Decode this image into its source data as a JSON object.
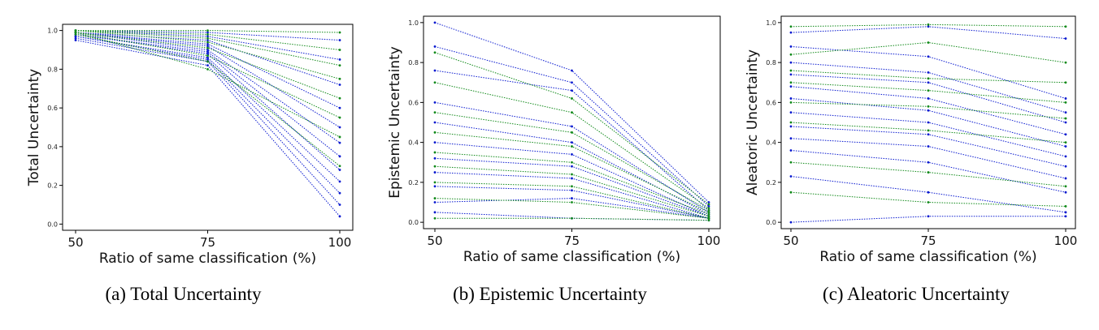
{
  "colors": {
    "series_a": "#0a1ad0",
    "series_b": "#118a1a"
  },
  "chart_data": [
    {
      "type": "line",
      "caption": "(a) Total Uncertainty",
      "xlabel": "Ratio  of same classification (%)",
      "ylabel": "Total Uncertainty",
      "x": [
        50,
        75,
        100
      ],
      "xticks": [
        "50",
        "75",
        "100"
      ],
      "yticks": [
        "0.0",
        "0.2",
        "0.4",
        "0.6",
        "0.8",
        "1.0"
      ],
      "ylim": [
        0,
        1
      ],
      "line_style": "dotted",
      "series": [
        {
          "color": "series_a",
          "values": [
            0.95,
            0.82,
            0.04
          ]
        },
        {
          "color": "series_a",
          "values": [
            0.96,
            0.84,
            0.1
          ]
        },
        {
          "color": "series_a",
          "values": [
            0.97,
            0.85,
            0.16
          ]
        },
        {
          "color": "series_a",
          "values": [
            0.97,
            0.86,
            0.22
          ]
        },
        {
          "color": "series_a",
          "values": [
            0.98,
            0.88,
            0.28
          ]
        },
        {
          "color": "series_a",
          "values": [
            0.98,
            0.89,
            0.35
          ]
        },
        {
          "color": "series_a",
          "values": [
            0.99,
            0.9,
            0.42
          ]
        },
        {
          "color": "series_a",
          "values": [
            0.99,
            0.92,
            0.5
          ]
        },
        {
          "color": "series_a",
          "values": [
            0.99,
            0.93,
            0.6
          ]
        },
        {
          "color": "series_a",
          "values": [
            0.99,
            0.95,
            0.72
          ]
        },
        {
          "color": "series_a",
          "values": [
            1.0,
            0.97,
            0.85
          ]
        },
        {
          "color": "series_a",
          "values": [
            1.0,
            0.99,
            0.95
          ]
        },
        {
          "color": "series_b",
          "values": [
            0.99,
            0.8,
            0.45
          ]
        },
        {
          "color": "series_b",
          "values": [
            0.99,
            0.87,
            0.55
          ]
        },
        {
          "color": "series_b",
          "values": [
            0.99,
            0.91,
            0.65
          ]
        },
        {
          "color": "series_b",
          "values": [
            1.0,
            0.94,
            0.75
          ]
        },
        {
          "color": "series_b",
          "values": [
            1.0,
            0.96,
            0.82
          ]
        },
        {
          "color": "series_b",
          "values": [
            1.0,
            0.98,
            0.9
          ]
        },
        {
          "color": "series_b",
          "values": [
            1.0,
            1.0,
            0.99
          ]
        },
        {
          "color": "series_b",
          "values": [
            0.98,
            0.84,
            0.3
          ]
        }
      ]
    },
    {
      "type": "line",
      "caption": "(b) Epistemic Uncertainty",
      "xlabel": "Ratio  of same classification (%)",
      "ylabel": "Epistemic Uncertainty",
      "x": [
        50,
        75,
        100
      ],
      "xticks": [
        "50",
        "75",
        "100"
      ],
      "yticks": [
        "0.0",
        "0.2",
        "0.4",
        "0.6",
        "0.8",
        "1.0"
      ],
      "ylim": [
        0,
        1
      ],
      "line_style": "dotted",
      "series": [
        {
          "color": "series_a",
          "values": [
            1.0,
            0.76,
            0.1
          ]
        },
        {
          "color": "series_a",
          "values": [
            0.88,
            0.7,
            0.08
          ]
        },
        {
          "color": "series_a",
          "values": [
            0.76,
            0.66,
            0.06
          ]
        },
        {
          "color": "series_a",
          "values": [
            0.6,
            0.48,
            0.05
          ]
        },
        {
          "color": "series_a",
          "values": [
            0.5,
            0.4,
            0.04
          ]
        },
        {
          "color": "series_a",
          "values": [
            0.4,
            0.34,
            0.03
          ]
        },
        {
          "color": "series_a",
          "values": [
            0.32,
            0.28,
            0.03
          ]
        },
        {
          "color": "series_a",
          "values": [
            0.25,
            0.22,
            0.02
          ]
        },
        {
          "color": "series_a",
          "values": [
            0.18,
            0.16,
            0.02
          ]
        },
        {
          "color": "series_a",
          "values": [
            0.1,
            0.12,
            0.02
          ]
        },
        {
          "color": "series_a",
          "values": [
            0.05,
            0.02,
            0.01
          ]
        },
        {
          "color": "series_b",
          "values": [
            0.85,
            0.62,
            0.09
          ]
        },
        {
          "color": "series_b",
          "values": [
            0.7,
            0.55,
            0.07
          ]
        },
        {
          "color": "series_b",
          "values": [
            0.55,
            0.45,
            0.06
          ]
        },
        {
          "color": "series_b",
          "values": [
            0.45,
            0.38,
            0.05
          ]
        },
        {
          "color": "series_b",
          "values": [
            0.35,
            0.3,
            0.04
          ]
        },
        {
          "color": "series_b",
          "values": [
            0.28,
            0.24,
            0.03
          ]
        },
        {
          "color": "series_b",
          "values": [
            0.2,
            0.18,
            0.02
          ]
        },
        {
          "color": "series_b",
          "values": [
            0.12,
            0.1,
            0.02
          ]
        },
        {
          "color": "series_b",
          "values": [
            0.02,
            0.02,
            0.01
          ]
        }
      ]
    },
    {
      "type": "line",
      "caption": "(c) Aleatoric Uncertainty",
      "xlabel": "Ratio  of same classification (%)",
      "ylabel": "Aleatoric Uncertainty",
      "x": [
        50,
        75,
        100
      ],
      "xticks": [
        "50",
        "75",
        "100"
      ],
      "yticks": [
        "0.0",
        "0.2",
        "0.4",
        "0.6",
        "0.8",
        "1.0"
      ],
      "ylim": [
        0,
        1
      ],
      "line_style": "dotted",
      "series": [
        {
          "color": "series_a",
          "values": [
            0.88,
            0.83,
            0.62
          ]
        },
        {
          "color": "series_a",
          "values": [
            0.8,
            0.75,
            0.55
          ]
        },
        {
          "color": "series_a",
          "values": [
            0.74,
            0.7,
            0.5
          ]
        },
        {
          "color": "series_a",
          "values": [
            0.68,
            0.62,
            0.44
          ]
        },
        {
          "color": "series_a",
          "values": [
            0.62,
            0.56,
            0.38
          ]
        },
        {
          "color": "series_a",
          "values": [
            0.55,
            0.5,
            0.33
          ]
        },
        {
          "color": "series_a",
          "values": [
            0.48,
            0.44,
            0.28
          ]
        },
        {
          "color": "series_a",
          "values": [
            0.42,
            0.38,
            0.22
          ]
        },
        {
          "color": "series_a",
          "values": [
            0.36,
            0.3,
            0.15
          ]
        },
        {
          "color": "series_a",
          "values": [
            0.23,
            0.15,
            0.05
          ]
        },
        {
          "color": "series_a",
          "values": [
            0.0,
            0.03,
            0.03
          ]
        },
        {
          "color": "series_a",
          "values": [
            0.95,
            0.98,
            0.92
          ]
        },
        {
          "color": "series_b",
          "values": [
            0.98,
            0.99,
            0.98
          ]
        },
        {
          "color": "series_b",
          "values": [
            0.84,
            0.9,
            0.8
          ]
        },
        {
          "color": "series_b",
          "values": [
            0.76,
            0.72,
            0.7
          ]
        },
        {
          "color": "series_b",
          "values": [
            0.7,
            0.66,
            0.6
          ]
        },
        {
          "color": "series_b",
          "values": [
            0.6,
            0.58,
            0.52
          ]
        },
        {
          "color": "series_b",
          "values": [
            0.5,
            0.46,
            0.4
          ]
        },
        {
          "color": "series_b",
          "values": [
            0.3,
            0.25,
            0.18
          ]
        },
        {
          "color": "series_b",
          "values": [
            0.15,
            0.1,
            0.08
          ]
        }
      ]
    }
  ]
}
